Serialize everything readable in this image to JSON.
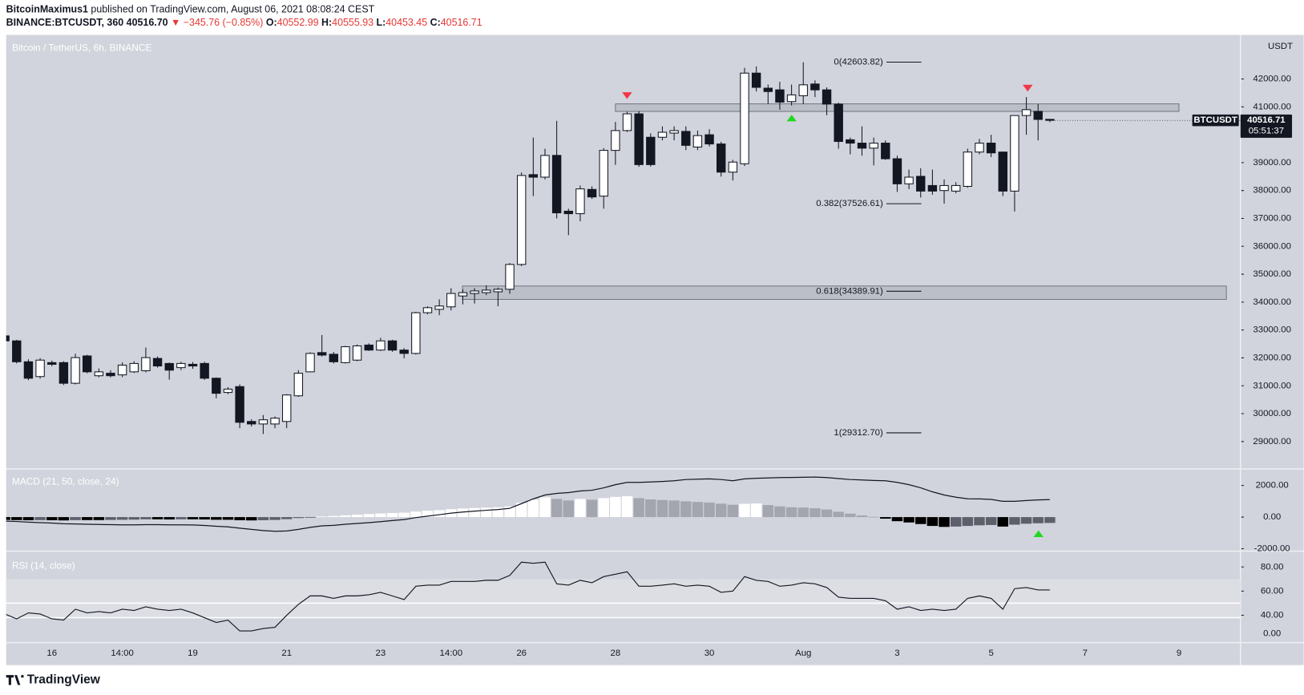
{
  "header": {
    "author": "BitcoinMaximus1",
    "published": " published on TradingView.com, August 06, 2021 08:08:24 CEST",
    "symbol": "BINANCE:BTCUSDT, 360",
    "last": "40516.70",
    "change": "▼ −345.76 (−0.85%)",
    "ohlc": [
      {
        "key": "O:",
        "value": "40552.99"
      },
      {
        "key": "H:",
        "value": "40555.93"
      },
      {
        "key": "L:",
        "value": "40453.45"
      },
      {
        "key": "C:",
        "value": "40516.71"
      }
    ]
  },
  "chart_data": [
    {
      "type": "candlestick",
      "title": "Bitcoin / TetherUS, 6h, BINANCE",
      "unit": "USDT",
      "categories": [
        null,
        null,
        null,
        null,
        "16",
        null,
        null,
        null,
        null,
        null,
        "14:00",
        null,
        null,
        null,
        null,
        null,
        "19",
        null,
        null,
        null,
        null,
        null,
        null,
        null,
        "21",
        null,
        null,
        null,
        null,
        null,
        null,
        null,
        "23",
        null,
        null,
        null,
        null,
        null,
        "14:00",
        null,
        null,
        null,
        null,
        null,
        "26",
        null,
        null,
        null,
        null,
        null,
        null,
        null,
        "28",
        null,
        null,
        null,
        null,
        null,
        null,
        null,
        "30",
        null,
        null,
        null,
        null,
        null,
        null,
        null,
        "Aug",
        null,
        null,
        null,
        null,
        null,
        null,
        null,
        "3",
        null,
        null,
        null,
        null,
        null,
        null,
        null,
        "5",
        null,
        null,
        null,
        null,
        null,
        null,
        null,
        "7",
        null,
        null,
        null,
        null,
        null,
        null,
        null,
        "9",
        null,
        null,
        null,
        null,
        null
      ],
      "open": [
        32790,
        32610,
        31860,
        31330,
        31830,
        31830,
        31090,
        32070,
        31360,
        31450,
        31390,
        31500,
        31540,
        31980,
        31800,
        31650,
        31770,
        31800,
        31270,
        30760,
        30970,
        29720,
        29630,
        29630,
        29720,
        30640,
        31500,
        32190,
        32130,
        31830,
        31920,
        32460,
        32280,
        32610,
        32280,
        32160,
        33620,
        33740,
        33830,
        34220,
        34310,
        34340,
        34370,
        34460,
        35350,
        38570,
        38480,
        39260,
        37260,
        37170,
        38040,
        37800,
        39440,
        40150,
        40750,
        39910,
        39910,
        40060,
        40120,
        39560,
        40000,
        39670,
        38660,
        38960,
        42210,
        41670,
        41610,
        41190,
        41400,
        41820,
        41610,
        41100,
        39820,
        39700,
        39520,
        39700,
        39140,
        38240,
        38510,
        38180,
        38000,
        37980,
        38150,
        39380,
        39700,
        39380,
        37980,
        40690,
        40840,
        40552.99,
        null,
        null,
        null,
        null,
        null,
        null,
        null,
        null,
        null,
        null,
        null,
        null,
        null,
        null,
        null,
        null
      ],
      "high": [
        32850,
        32650,
        31950,
        31990,
        31900,
        31880,
        32150,
        32110,
        31620,
        31560,
        31840,
        31880,
        32370,
        32050,
        31830,
        31860,
        31850,
        31860,
        31300,
        30950,
        31050,
        29800,
        29950,
        29900,
        30700,
        31560,
        32200,
        32820,
        32210,
        32430,
        32480,
        32520,
        32720,
        32650,
        32350,
        33650,
        33850,
        34100,
        34500,
        34460,
        34500,
        34600,
        34520,
        35400,
        38650,
        39900,
        39500,
        40500,
        37350,
        38180,
        38150,
        39520,
        40460,
        40820,
        40850,
        40050,
        40300,
        40300,
        40300,
        40150,
        40200,
        39750,
        39100,
        42400,
        42450,
        41800,
        41900,
        41800,
        42600,
        41950,
        41700,
        41150,
        39900,
        40300,
        39900,
        39800,
        39250,
        38750,
        38800,
        38750,
        38400,
        38300,
        39500,
        39850,
        40000,
        39400,
        40700,
        41350,
        41100,
        40555.93,
        null,
        null,
        null,
        null,
        null,
        null,
        null,
        null,
        null,
        null,
        null,
        null,
        null,
        null,
        null,
        null
      ],
      "low": [
        32600,
        31800,
        31200,
        31260,
        31700,
        31030,
        31050,
        31450,
        31300,
        31300,
        31310,
        31460,
        31480,
        31650,
        31220,
        31560,
        31610,
        31210,
        30550,
        30700,
        29480,
        29540,
        29270,
        29480,
        29480,
        30600,
        31480,
        32050,
        31800,
        31800,
        31880,
        32250,
        32250,
        32220,
        31980,
        32120,
        33560,
        33530,
        33700,
        33920,
        33950,
        34250,
        33850,
        34300,
        35290,
        37800,
        38400,
        37000,
        36400,
        36900,
        37700,
        37350,
        38920,
        40100,
        38850,
        38860,
        39800,
        39800,
        39450,
        39450,
        39580,
        38500,
        38360,
        38880,
        41550,
        41100,
        40900,
        41050,
        41100,
        41350,
        40700,
        39500,
        39300,
        39250,
        38900,
        39100,
        37950,
        38050,
        37750,
        37850,
        37530,
        37900,
        38100,
        39300,
        39200,
        37800,
        37250,
        40000,
        39800,
        40453.45,
        null,
        null,
        null,
        null,
        null,
        null,
        null,
        null,
        null,
        null,
        null,
        null,
        null,
        null,
        null,
        null
      ],
      "close": [
        32610,
        31860,
        31270,
        31920,
        31770,
        31090,
        32010,
        31500,
        31500,
        31360,
        31740,
        31800,
        32010,
        31710,
        31560,
        31800,
        31710,
        31270,
        30730,
        30880,
        29690,
        29630,
        29780,
        29840,
        30670,
        31450,
        32160,
        32100,
        31860,
        32400,
        32430,
        32280,
        32610,
        32280,
        32160,
        33620,
        33800,
        33860,
        34310,
        34340,
        34400,
        34430,
        34460,
        35350,
        38540,
        38480,
        39260,
        37200,
        37170,
        38060,
        37770,
        39440,
        40150,
        40750,
        38930,
        38930,
        40090,
        40150,
        39620,
        39970,
        39670,
        38660,
        39020,
        42210,
        41700,
        41550,
        41170,
        41430,
        41790,
        41610,
        41100,
        39760,
        39700,
        39520,
        39700,
        39140,
        38240,
        38480,
        37980,
        37980,
        38180,
        38180,
        39380,
        39700,
        39350,
        37980,
        40690,
        40900,
        40550,
        40516.71,
        null,
        null,
        null,
        null,
        null,
        null,
        null,
        null,
        null,
        null,
        null,
        null,
        null,
        null,
        null,
        null
      ],
      "up_color": "#ffffff",
      "down_color": "#131722",
      "ylim": [
        28050,
        43580
      ],
      "yticks": [
        {
          "value": 29000,
          "label": "29000.00"
        },
        {
          "value": 30000,
          "label": "30000.00"
        },
        {
          "value": 31000,
          "label": "31000.00"
        },
        {
          "value": 32000,
          "label": "32000.00"
        },
        {
          "value": 33000,
          "label": "33000.00"
        },
        {
          "value": 34000,
          "label": "34000.00"
        },
        {
          "value": 35000,
          "label": "35000.00"
        },
        {
          "value": 36000,
          "label": "36000.00"
        },
        {
          "value": 37000,
          "label": "37000.00"
        },
        {
          "value": 38000,
          "label": "38000.00"
        },
        {
          "value": 39000,
          "label": "39000.00"
        },
        {
          "value": 40000,
          "label": "40000.00"
        },
        {
          "value": 41000,
          "label": "41000.00"
        },
        {
          "value": 42000,
          "label": "42000.00"
        }
      ],
      "zones": [
        {
          "from": 40837,
          "to": 41106
        },
        {
          "from": 34099,
          "to": 34576
        }
      ],
      "fib_levels": [
        {
          "value": 42603.82,
          "label": "0(42603.82)"
        },
        {
          "value": 37526.61,
          "label": "0.382(37526.61)"
        },
        {
          "value": 34389.91,
          "label": "0.618(34389.91)"
        },
        {
          "value": 29312.7,
          "label": "1(29312.70)"
        }
      ],
      "symbol_badge": "BTCUSDT",
      "last_price_label": "40516.71",
      "countdown": "05:51:37"
    },
    {
      "type": "macd",
      "title": "MACD (21, 50, close, 24)",
      "histogram": {
        "colors": [
          "#ffffff",
          "#a3a6af",
          "#000000",
          "#5d606b"
        ],
        "values": [
          -180,
          -190,
          -200,
          -190,
          -200,
          -210,
          -190,
          -190,
          -190,
          -180,
          -170,
          -160,
          -140,
          -140,
          -150,
          -140,
          -140,
          -150,
          -170,
          -170,
          -200,
          -210,
          -200,
          -180,
          -130,
          -60,
          -10,
          40,
          70,
          110,
          150,
          190,
          230,
          260,
          280,
          350,
          400,
          440,
          500,
          540,
          570,
          600,
          620,
          680,
          900,
          1100,
          1250,
          1150,
          1050,
          1150,
          1100,
          1200,
          1280,
          1320,
          1200,
          1120,
          1080,
          1050,
          1000,
          960,
          920,
          850,
          780,
          840,
          860,
          760,
          680,
          620,
          600,
          560,
          480,
          340,
          220,
          100,
          20,
          -100,
          -260,
          -340,
          -440,
          -560,
          -620,
          -600,
          -560,
          -520,
          -500,
          -600,
          -480,
          -420,
          -390,
          -370,
          null,
          null,
          null,
          null,
          null,
          null,
          null,
          null,
          null,
          null,
          null,
          null,
          null,
          null,
          null,
          null
        ]
      },
      "macd": {
        "color": "#131722",
        "values": [
          -250,
          -280,
          -320,
          -350,
          -380,
          -420,
          -430,
          -450,
          -470,
          -480,
          -490,
          -490,
          -480,
          -480,
          -490,
          -490,
          -500,
          -530,
          -580,
          -620,
          -700,
          -780,
          -850,
          -900,
          -880,
          -780,
          -650,
          -560,
          -520,
          -450,
          -400,
          -350,
          -290,
          -220,
          -160,
          -30,
          60,
          150,
          250,
          320,
          380,
          430,
          480,
          560,
          850,
          1150,
          1400,
          1500,
          1550,
          1650,
          1700,
          1850,
          2050,
          2200,
          2200,
          2220,
          2260,
          2300,
          2380,
          2400,
          2420,
          2380,
          2300,
          2420,
          2460,
          2480,
          2500,
          2510,
          2520,
          2530,
          2500,
          2440,
          2380,
          2350,
          2320,
          2300,
          2200,
          2050,
          1850,
          1600,
          1400,
          1260,
          1160,
          1150,
          1120,
          1000,
          1000,
          1050,
          1090,
          1105,
          null,
          null,
          null,
          null,
          null,
          null,
          null,
          null,
          null,
          null,
          null,
          null,
          null,
          null,
          null,
          null
        ]
      },
      "ylim": [
        -2105,
        2947
      ],
      "yticks": [
        {
          "value": 2000,
          "label": "2000.00"
        },
        {
          "value": 0,
          "label": "0.00"
        },
        {
          "value": -2000,
          "label": "-2000.00"
        }
      ]
    },
    {
      "type": "line",
      "title": "RSI (14, close)",
      "color": "#131722",
      "values": [
        41,
        37,
        42,
        41,
        37,
        36,
        45,
        42,
        43,
        42,
        45,
        44,
        47,
        45,
        44,
        45,
        42,
        38,
        34,
        36,
        27,
        27,
        29,
        30,
        40,
        49,
        56,
        56,
        54,
        56,
        56,
        57,
        59,
        56,
        53,
        64,
        65,
        65,
        68,
        68,
        68,
        69,
        69,
        73,
        84,
        83,
        84,
        66,
        65,
        69,
        67,
        72,
        74,
        76,
        64,
        64,
        65,
        66,
        64,
        65,
        64,
        59,
        60,
        72,
        69,
        68,
        64,
        65,
        67,
        66,
        63,
        55,
        54,
        54,
        54,
        52,
        45,
        47,
        44,
        45,
        44,
        45,
        54,
        56,
        54,
        45,
        62,
        63,
        61,
        61,
        null,
        null,
        null,
        null,
        null,
        null,
        null,
        null,
        null,
        null,
        null,
        null,
        null,
        null,
        null,
        null
      ],
      "ylim": [
        18,
        91.7
      ],
      "yticks": [
        {
          "value": 80,
          "label": "80.00"
        },
        {
          "value": 60,
          "label": "60.00"
        },
        {
          "value": 40,
          "label": "40.00"
        }
      ],
      "levels": [
        70,
        50,
        38
      ],
      "extra_label": "0.00"
    }
  ],
  "footer": {
    "logo": "TradingView"
  }
}
